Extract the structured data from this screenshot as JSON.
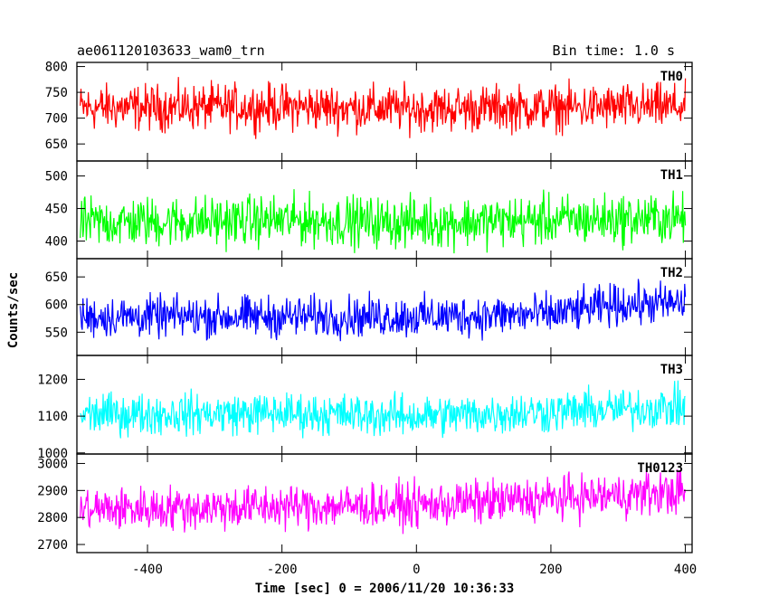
{
  "header": {
    "title": "ae061120103633_wam0_trn",
    "bin_time": "Bin time: 1.0 s"
  },
  "axes": {
    "xlabel": "Time [sec] 0 = 2006/11/20 10:36:33",
    "ylabel": "Counts/sec",
    "xlim": [
      -505,
      410
    ],
    "xticks": [
      -400,
      -200,
      0,
      200,
      400
    ]
  },
  "chart_data": {
    "type": "line",
    "title": "ae061120103633_wam0_trn",
    "xlabel": "Time [sec] 0 = 2006/11/20 10:36:33",
    "ylabel": "Counts/sec",
    "x_range": [
      -500,
      400
    ],
    "bin_seconds": 1.0,
    "grid": false,
    "legend": "none",
    "panels": [
      {
        "name": "TH0",
        "color": "#ff0000",
        "ylim": [
          617,
          808
        ],
        "yticks": [
          650,
          700,
          750,
          800
        ],
        "mean": 720,
        "noise_amplitude": 38,
        "trend": [
          [
            -500,
            720
          ],
          [
            -200,
            722
          ],
          [
            0,
            718
          ],
          [
            200,
            720
          ],
          [
            400,
            722
          ]
        ]
      },
      {
        "name": "TH1",
        "color": "#00ff00",
        "ylim": [
          373,
          523
        ],
        "yticks": [
          400,
          450,
          500
        ],
        "mean": 430,
        "noise_amplitude": 33,
        "trend": [
          [
            -500,
            428
          ],
          [
            -200,
            432
          ],
          [
            0,
            428
          ],
          [
            200,
            432
          ],
          [
            400,
            435
          ]
        ]
      },
      {
        "name": "TH2",
        "color": "#0000ff",
        "ylim": [
          508,
          683
        ],
        "yticks": [
          550,
          600,
          650
        ],
        "mean": 578,
        "noise_amplitude": 32,
        "trend": [
          [
            -500,
            578
          ],
          [
            -200,
            578
          ],
          [
            0,
            578
          ],
          [
            200,
            582
          ],
          [
            300,
            600
          ],
          [
            400,
            602
          ]
        ]
      },
      {
        "name": "TH3",
        "color": "#00ffff",
        "ylim": [
          997,
          1265
        ],
        "yticks": [
          1000,
          1100,
          1200
        ],
        "mean": 1105,
        "noise_amplitude": 48,
        "trend": [
          [
            -500,
            1105
          ],
          [
            -200,
            1108
          ],
          [
            0,
            1100
          ],
          [
            200,
            1112
          ],
          [
            400,
            1125
          ]
        ]
      },
      {
        "name": "TH0123",
        "color": "#ff00ff",
        "ylim": [
          2670,
          3035
        ],
        "yticks": [
          2700,
          2800,
          2900,
          3000
        ],
        "mean": 2830,
        "noise_amplitude": 70,
        "trend": [
          [
            -500,
            2830
          ],
          [
            -200,
            2840
          ],
          [
            0,
            2845
          ],
          [
            200,
            2870
          ],
          [
            400,
            2895
          ]
        ]
      }
    ]
  }
}
